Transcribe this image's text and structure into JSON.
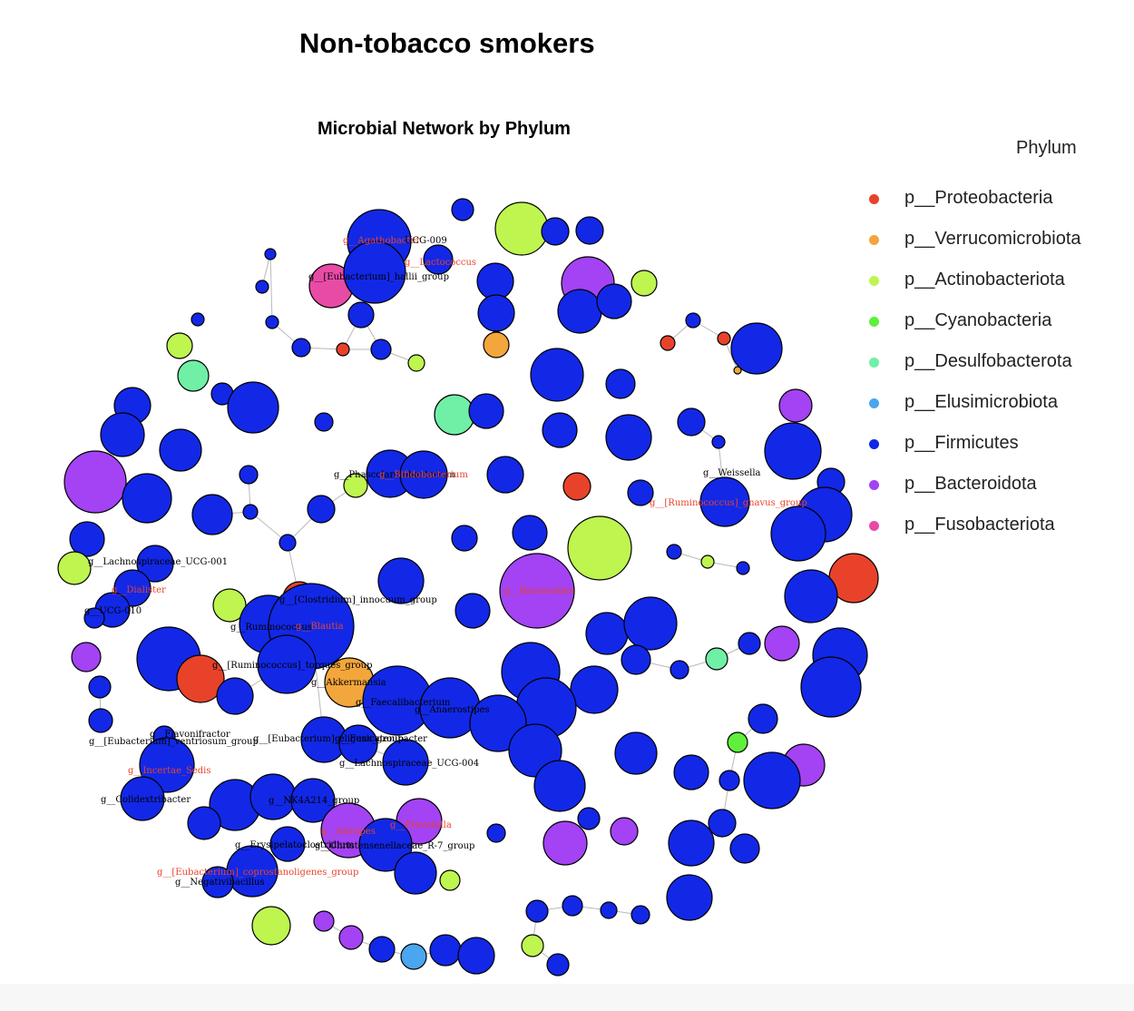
{
  "page_title": "Non-tobacco smokers",
  "network": {
    "title": "Microbial Network by Phylum",
    "legend": {
      "title": "Phylum",
      "items": [
        {
          "label": "p__Proteobacteria",
          "color": "#e8432a"
        },
        {
          "label": "p__Verrucomicrobiota",
          "color": "#f3a63b"
        },
        {
          "label": "p__Actinobacteriota",
          "color": "#bef54f"
        },
        {
          "label": "p__Cyanobacteria",
          "color": "#5ef03b"
        },
        {
          "label": "p__Desulfobacterota",
          "color": "#6ff0a6"
        },
        {
          "label": "p__Elusimicrobiota",
          "color": "#4aa6ee"
        },
        {
          "label": "p__Firmicutes",
          "color": "#1228e6"
        },
        {
          "label": "p__Bacteroidota",
          "color": "#a343f4"
        },
        {
          "label": "p__Fusobacteriota",
          "color": "#e84ba6"
        }
      ]
    },
    "node_labels": [
      {
        "text": "g__Agathobacter",
        "color": "#e8432a"
      },
      {
        "text": "UCG-009",
        "color": "#000000"
      },
      {
        "text": "g__Lactococcus",
        "color": "#e8432a"
      },
      {
        "text": "g__[Eubacterium]_hallii_group",
        "color": "#000000"
      },
      {
        "text": "g__Phascolarctobacterium",
        "color": "#000000"
      },
      {
        "text": "g__Bifidobacterium",
        "color": "#e8432a"
      },
      {
        "text": "g__Weissella",
        "color": "#000000"
      },
      {
        "text": "g__[Ruminococcus]_gnavus_group",
        "color": "#e8432a"
      },
      {
        "text": "g__Lachnospiraceae_UCG-001",
        "color": "#000000"
      },
      {
        "text": "g__Dialister",
        "color": "#e8432a"
      },
      {
        "text": "g__UCG-010",
        "color": "#000000"
      },
      {
        "text": "g__[Clostridium]_innocuum_group",
        "color": "#000000"
      },
      {
        "text": "g__Bacteroides",
        "color": "#e8432a"
      },
      {
        "text": "g__Ruminococcus",
        "color": "#000000"
      },
      {
        "text": "g__Blautia",
        "color": "#e8432a"
      },
      {
        "text": "g__[Ruminococcus]_torques_group",
        "color": "#000000"
      },
      {
        "text": "g__Akkermansia",
        "color": "#000000"
      },
      {
        "text": "g__Faecalibacterium",
        "color": "#000000"
      },
      {
        "text": "g__Anaerostipes",
        "color": "#000000"
      },
      {
        "text": "g__Flavonifractor",
        "color": "#000000"
      },
      {
        "text": "g__[Eubacterium]_ventriosum_group",
        "color": "#000000"
      },
      {
        "text": "g__[Eubacterium]_eligens_group",
        "color": "#000000"
      },
      {
        "text": "g__Fusicatenibacter",
        "color": "#000000"
      },
      {
        "text": "g__Lachnospiraceae_UCG-004",
        "color": "#000000"
      },
      {
        "text": "g__Incertae_Sedis",
        "color": "#e8432a"
      },
      {
        "text": "g__Colidextribacter",
        "color": "#000000"
      },
      {
        "text": "g__NK4A214_group",
        "color": "#000000"
      },
      {
        "text": "g__Alistipes",
        "color": "#e8432a"
      },
      {
        "text": "g__Prevotella",
        "color": "#e8432a"
      },
      {
        "text": "g__Erysipelatoclostridium",
        "color": "#000000"
      },
      {
        "text": "g__Christensenellaceae_R-7_group",
        "color": "#000000"
      },
      {
        "text": "g__[Eubacterium]_coprostanoligenes_group",
        "color": "#e8432a"
      },
      {
        "text": "g__Negativibacillus",
        "color": "#000000"
      }
    ]
  }
}
